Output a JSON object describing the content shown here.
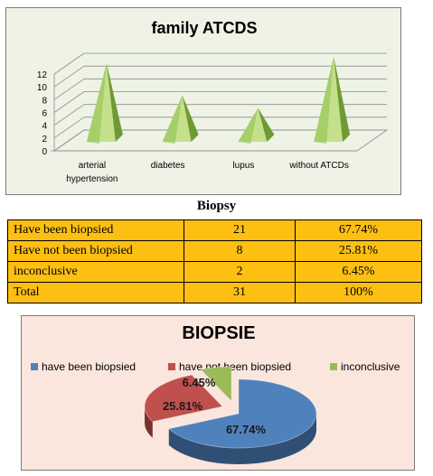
{
  "chart_data": [
    {
      "type": "bar",
      "style": "3d-pyramid",
      "title": "family ATCDS",
      "categories": [
        [
          "arterial",
          "hypertension"
        ],
        [
          "diabetes"
        ],
        [
          "lupus"
        ],
        [
          "without ATCDs"
        ]
      ],
      "values": [
        12,
        7,
        5,
        13
      ],
      "yticks": [
        "0",
        "2",
        "4",
        "6",
        "8",
        "10",
        "12"
      ],
      "ylim": [
        0,
        12
      ],
      "grid": true,
      "colors": {
        "pyramid": "#92c254",
        "pyramid_light": "#c4e08a",
        "pyramid_dark": "#6f9a33"
      }
    },
    {
      "type": "pie",
      "style": "3d-exploded",
      "title": "BIOPSIE",
      "legend_position": "top",
      "series": [
        {
          "name": "have been biopsied",
          "value": 67.74,
          "label": "67.74%",
          "color": "#4f81bd"
        },
        {
          "name": "have not been biopsied",
          "value": 25.81,
          "label": "25.81%",
          "color": "#c0504d"
        },
        {
          "name": "inconclusive",
          "value": 6.45,
          "label": "6.45%",
          "color": "#9bbb59"
        }
      ]
    }
  ],
  "table": {
    "title": "Biopsy",
    "rows": [
      [
        "Have been biopsied",
        "21",
        "67.74%"
      ],
      [
        "Have not been biopsied",
        "8",
        "25.81%"
      ],
      [
        "inconclusive",
        "2",
        "6.45%"
      ],
      [
        "Total",
        "31",
        "100%"
      ]
    ]
  }
}
